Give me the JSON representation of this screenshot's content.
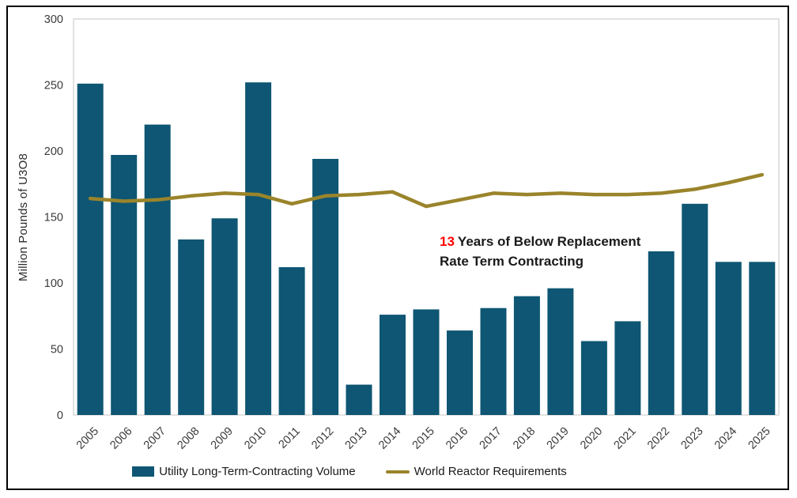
{
  "figure": {
    "y_axis_title": "Million Pounds of U3O8",
    "annotation": {
      "highlight": "13",
      "rest_line1": "Years of Below Replacement",
      "line2": "Rate Term Contracting",
      "highlight_color": "#FF0000",
      "text_color": "#1A1A1A"
    },
    "legend": [
      {
        "label": "Utility Long-Term-Contracting Volume",
        "swatch": "bar",
        "color": "#0E5673"
      },
      {
        "label": "World Reactor Requirements",
        "swatch": "line",
        "color": "#9A842B"
      }
    ]
  },
  "chart_data": {
    "type": "bar",
    "title": "",
    "xlabel": "",
    "ylabel": "Million Pounds of U3O8",
    "ylim": [
      0,
      300
    ],
    "yticks": [
      0,
      50,
      100,
      150,
      200,
      250,
      300
    ],
    "grid": false,
    "legend_position": "bottom",
    "categories": [
      "2005",
      "2006",
      "2007",
      "2008",
      "2009",
      "2010",
      "2011",
      "2012",
      "2013",
      "2014",
      "2015",
      "2016",
      "2017",
      "2018",
      "2019",
      "2020",
      "2021",
      "2022",
      "2023",
      "2024",
      "2025"
    ],
    "series": [
      {
        "name": "Utility Long-Term-Contracting Volume",
        "type": "bar",
        "color": "#0E5673",
        "values": [
          251,
          197,
          220,
          133,
          149,
          252,
          112,
          194,
          23,
          76,
          80,
          64,
          81,
          90,
          96,
          56,
          71,
          124,
          160,
          116,
          116
        ]
      },
      {
        "name": "World Reactor Requirements",
        "type": "line",
        "color": "#9A842B",
        "values": [
          164,
          162,
          163,
          166,
          168,
          167,
          160,
          166,
          167,
          169,
          158,
          163,
          168,
          167,
          168,
          167,
          167,
          168,
          171,
          176,
          182
        ]
      }
    ],
    "colors": {
      "plot_border": "#D9D9D9",
      "tick_label": "#3b3b3b",
      "background": "#ffffff"
    }
  }
}
